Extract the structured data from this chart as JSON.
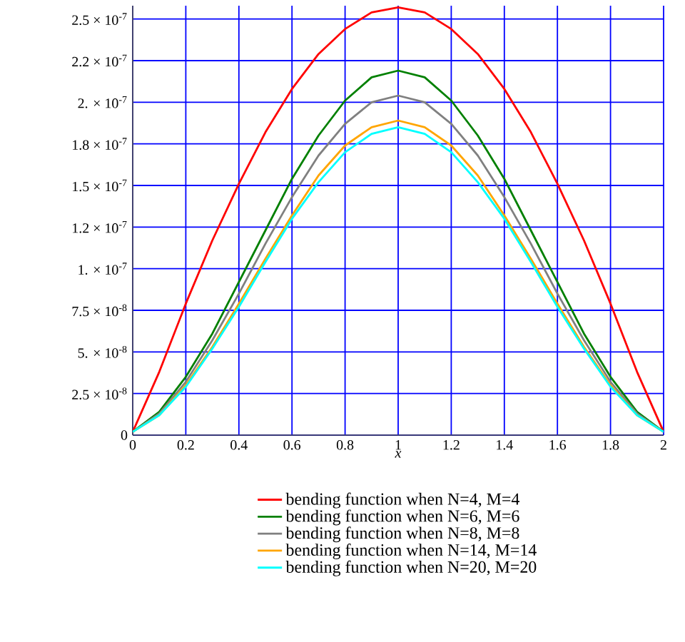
{
  "chart_data": {
    "type": "line",
    "xlabel": "x",
    "x": [
      0,
      0.1,
      0.2,
      0.3,
      0.4,
      0.5,
      0.6,
      0.7,
      0.8,
      0.9,
      1,
      1.1,
      1.2,
      1.3,
      1.4,
      1.5,
      1.6,
      1.7,
      1.8,
      1.9,
      2
    ],
    "series": [
      {
        "name": "bending function when N=4, M=4",
        "color": "#ff0000",
        "values": [
          2e-09,
          3.8e-08,
          7.9e-08,
          1.17e-07,
          1.51e-07,
          1.82e-07,
          2.08e-07,
          2.29e-07,
          2.44e-07,
          2.54e-07,
          2.57e-07,
          2.54e-07,
          2.44e-07,
          2.29e-07,
          2.08e-07,
          1.82e-07,
          1.51e-07,
          1.17e-07,
          7.9e-08,
          3.8e-08,
          2e-09
        ]
      },
      {
        "name": "bending function when N=6, M=6",
        "color": "#008000",
        "values": [
          2e-09,
          1.4e-08,
          3.5e-08,
          6.1e-08,
          9.2e-08,
          1.23e-07,
          1.54e-07,
          1.8e-07,
          2.01e-07,
          2.15e-07,
          2.19e-07,
          2.15e-07,
          2.01e-07,
          1.8e-07,
          1.54e-07,
          1.23e-07,
          9.2e-08,
          6.1e-08,
          3.5e-08,
          1.4e-08,
          2e-09
        ]
      },
      {
        "name": "bending function when N=8, M=8",
        "color": "#808080",
        "values": [
          2e-09,
          1.3e-08,
          3.2e-08,
          5.7e-08,
          8.5e-08,
          1.15e-07,
          1.43e-07,
          1.68e-07,
          1.87e-07,
          2e-07,
          2.04e-07,
          2e-07,
          1.87e-07,
          1.68e-07,
          1.43e-07,
          1.15e-07,
          8.5e-08,
          5.7e-08,
          3.2e-08,
          1.3e-08,
          2e-09
        ]
      },
      {
        "name": "bending function when N=14, M=14",
        "color": "#ffa500",
        "values": [
          2e-09,
          1.2e-08,
          3e-08,
          5.3e-08,
          7.9e-08,
          1.06e-07,
          1.32e-07,
          1.56e-07,
          1.74e-07,
          1.85e-07,
          1.89e-07,
          1.85e-07,
          1.74e-07,
          1.56e-07,
          1.32e-07,
          1.06e-07,
          7.9e-08,
          5.3e-08,
          3e-08,
          1.2e-08,
          2e-09
        ]
      },
      {
        "name": "bending function when N=20, M=20",
        "color": "#00ffff",
        "values": [
          2e-09,
          1.2e-08,
          2.9e-08,
          5.2e-08,
          7.7e-08,
          1.04e-07,
          1.3e-07,
          1.52e-07,
          1.7e-07,
          1.81e-07,
          1.85e-07,
          1.81e-07,
          1.7e-07,
          1.52e-07,
          1.3e-07,
          1.04e-07,
          7.7e-08,
          5.2e-08,
          2.9e-08,
          1.2e-08,
          2e-09
        ]
      }
    ],
    "xlim": [
      0,
      2
    ],
    "ylim": [
      0,
      2.58e-07
    ],
    "xticks": [
      0,
      0.2,
      0.4,
      0.6,
      0.8,
      1,
      1.2,
      1.4,
      1.6,
      1.8,
      2
    ],
    "yticks": [
      0,
      {
        "value": 2.5e-08,
        "label": "2.5 × 10$^{-8}$"
      },
      {
        "value": 5e-08,
        "label": "5. × 10$^{-8}$"
      },
      {
        "value": 7.5e-08,
        "label": "7.5 × 10$^{-8}$"
      },
      {
        "value": 1e-07,
        "label": "1. × 10$^{-7}$"
      },
      {
        "value": 1.25e-07,
        "label": "1.2 × 10$^{-7}$"
      },
      {
        "value": 1.5e-07,
        "label": "1.5 × 10$^{-7}$"
      },
      {
        "value": 1.75e-07,
        "label": "1.8 × 10$^{-7}$"
      },
      {
        "value": 2e-07,
        "label": "2. × 10$^{-7}$"
      },
      {
        "value": 2.25e-07,
        "label": "2.2 × 10$^{-7}$"
      },
      {
        "value": 2.5e-07,
        "label": "2.5 × 10$^{-7}$"
      }
    ],
    "grid": true,
    "legend": "bottom",
    "line_style": "solid"
  }
}
